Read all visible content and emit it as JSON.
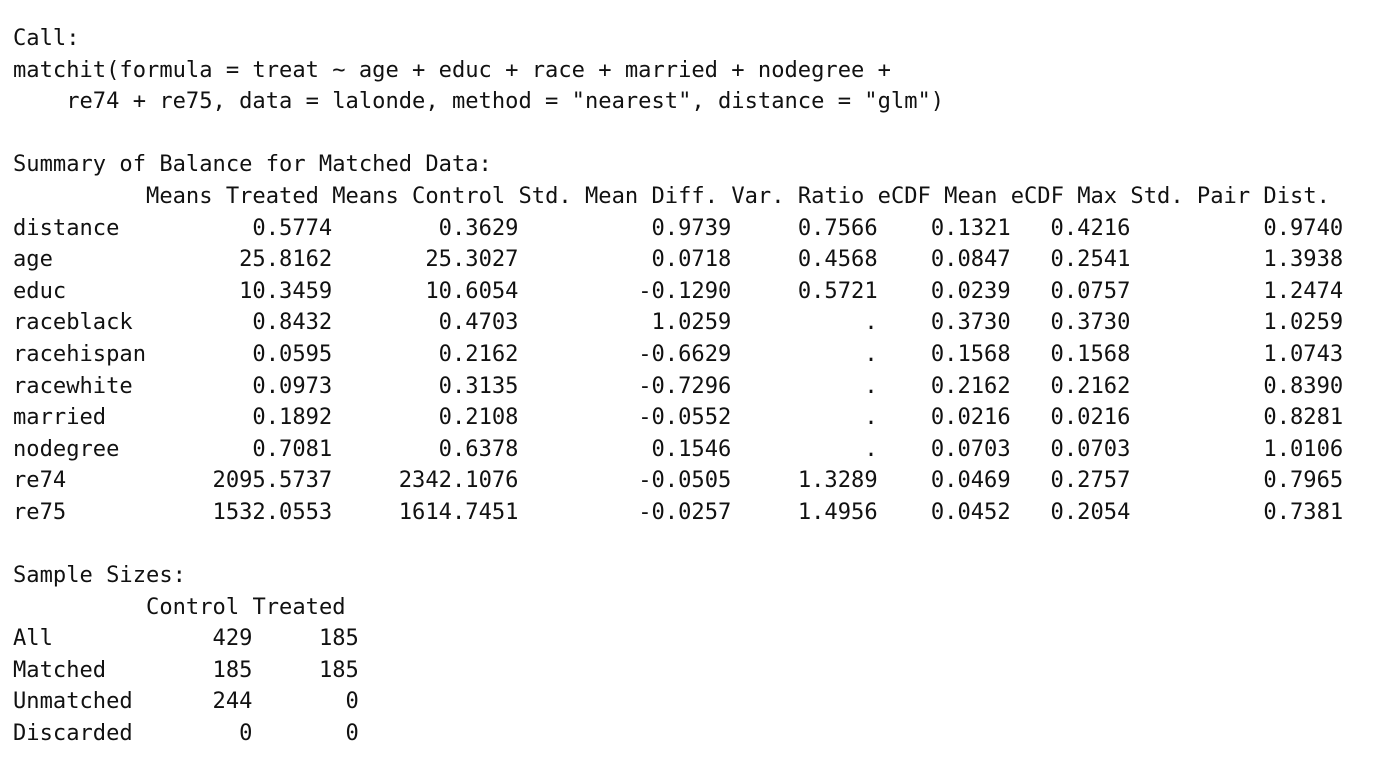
{
  "call": {
    "label": "Call:",
    "line1": "matchit(formula = treat ~ age + educ + race + married + nodegree +",
    "line2": "    re74 + re75, data = lalonde, method = \"nearest\", distance = \"glm\")"
  },
  "balance": {
    "heading": "Summary of Balance for Matched Data:",
    "columns": [
      "Means Treated",
      "Means Control",
      "Std. Mean Diff.",
      "Var. Ratio",
      "eCDF Mean",
      "eCDF Max",
      "Std. Pair Dist."
    ],
    "rows": [
      {
        "name": "distance",
        "values": [
          "0.5774",
          "0.3629",
          "0.9739",
          "0.7566",
          "0.1321",
          "0.4216",
          "0.9740"
        ]
      },
      {
        "name": "age",
        "values": [
          "25.8162",
          "25.3027",
          "0.0718",
          "0.4568",
          "0.0847",
          "0.2541",
          "1.3938"
        ]
      },
      {
        "name": "educ",
        "values": [
          "10.3459",
          "10.6054",
          "-0.1290",
          "0.5721",
          "0.0239",
          "0.0757",
          "1.2474"
        ]
      },
      {
        "name": "raceblack",
        "values": [
          "0.8432",
          "0.4703",
          "1.0259",
          ".",
          "0.3730",
          "0.3730",
          "1.0259"
        ]
      },
      {
        "name": "racehispan",
        "values": [
          "0.0595",
          "0.2162",
          "-0.6629",
          ".",
          "0.1568",
          "0.1568",
          "1.0743"
        ]
      },
      {
        "name": "racewhite",
        "values": [
          "0.0973",
          "0.3135",
          "-0.7296",
          ".",
          "0.2162",
          "0.2162",
          "0.8390"
        ]
      },
      {
        "name": "married",
        "values": [
          "0.1892",
          "0.2108",
          "-0.0552",
          ".",
          "0.0216",
          "0.0216",
          "0.8281"
        ]
      },
      {
        "name": "nodegree",
        "values": [
          "0.7081",
          "0.6378",
          "0.1546",
          ".",
          "0.0703",
          "0.0703",
          "1.0106"
        ]
      },
      {
        "name": "re74",
        "values": [
          "2095.5737",
          "2342.1076",
          "-0.0505",
          "1.3289",
          "0.0469",
          "0.2757",
          "0.7965"
        ]
      },
      {
        "name": "re75",
        "values": [
          "1532.0553",
          "1614.7451",
          "-0.0257",
          "1.4956",
          "0.0452",
          "0.2054",
          "0.7381"
        ]
      }
    ]
  },
  "sample_sizes": {
    "heading": "Sample Sizes:",
    "columns": [
      "Control",
      "Treated"
    ],
    "rows": [
      {
        "name": "All",
        "values": [
          "429",
          "185"
        ]
      },
      {
        "name": "Matched",
        "values": [
          "185",
          "185"
        ]
      },
      {
        "name": "Unmatched",
        "values": [
          "244",
          "0"
        ]
      },
      {
        "name": "Discarded",
        "values": [
          "0",
          "0"
        ]
      }
    ]
  }
}
